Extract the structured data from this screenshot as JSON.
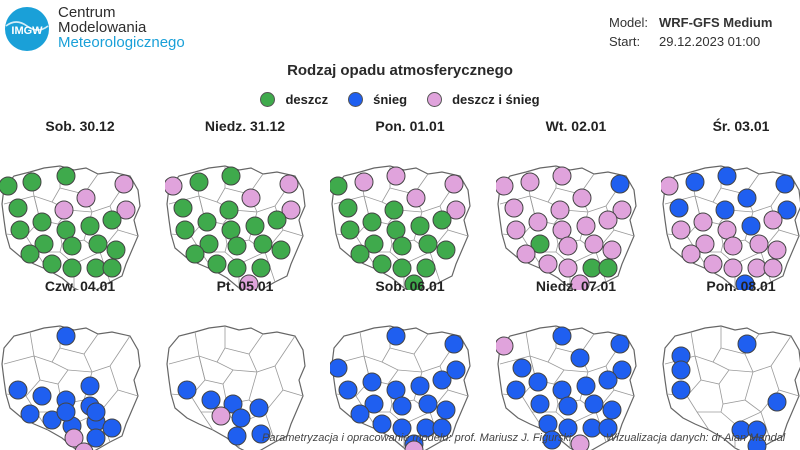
{
  "header": {
    "logo_text": "IMGW",
    "org_line1": "Centrum",
    "org_line2": "Modelowania",
    "org_line3": "Meteorologicznego",
    "model_label": "Model:",
    "model_value": "WRF-GFS Medium",
    "start_label": "Start:",
    "start_value": "29.12.2023 01:00"
  },
  "title": "Rodzaj opadu atmosferycznego",
  "legend": [
    {
      "label": "deszcz",
      "color": "#3faa4c"
    },
    {
      "label": "śnieg",
      "color": "#1f5ff0"
    },
    {
      "label": "deszcz i śnieg",
      "color": "#e0a3dc"
    }
  ],
  "colors": {
    "r": "#3faa4c",
    "s": "#1f5ff0",
    "m": "#e0a3dc",
    "outline": "#666666"
  },
  "maps": [
    {
      "date": "Sob. 30.12",
      "points": [
        [
          "r",
          8,
          46
        ],
        [
          "r",
          32,
          42
        ],
        [
          "r",
          66,
          36
        ],
        [
          "m",
          86,
          58
        ],
        [
          "m",
          124,
          44
        ],
        [
          "r",
          18,
          68
        ],
        [
          "m",
          64,
          70
        ],
        [
          "m",
          126,
          70
        ],
        [
          "r",
          20,
          90
        ],
        [
          "r",
          42,
          82
        ],
        [
          "r",
          66,
          90
        ],
        [
          "r",
          90,
          86
        ],
        [
          "r",
          112,
          80
        ],
        [
          "r",
          44,
          104
        ],
        [
          "r",
          72,
          106
        ],
        [
          "r",
          98,
          104
        ],
        [
          "r",
          116,
          110
        ],
        [
          "r",
          30,
          114
        ],
        [
          "r",
          52,
          124
        ],
        [
          "r",
          72,
          128
        ],
        [
          "r",
          96,
          128
        ],
        [
          "r",
          112,
          128
        ]
      ]
    },
    {
      "date": "Niedz. 31.12",
      "points": [
        [
          "m",
          8,
          46
        ],
        [
          "r",
          34,
          42
        ],
        [
          "r",
          66,
          36
        ],
        [
          "m",
          86,
          58
        ],
        [
          "m",
          124,
          44
        ],
        [
          "r",
          18,
          68
        ],
        [
          "r",
          64,
          70
        ],
        [
          "m",
          126,
          70
        ],
        [
          "r",
          20,
          90
        ],
        [
          "r",
          42,
          82
        ],
        [
          "r",
          66,
          90
        ],
        [
          "r",
          90,
          86
        ],
        [
          "r",
          112,
          80
        ],
        [
          "r",
          44,
          104
        ],
        [
          "r",
          72,
          106
        ],
        [
          "r",
          98,
          104
        ],
        [
          "r",
          116,
          110
        ],
        [
          "r",
          30,
          114
        ],
        [
          "r",
          52,
          124
        ],
        [
          "r",
          72,
          128
        ],
        [
          "r",
          96,
          128
        ],
        [
          "m",
          84,
          144
        ]
      ]
    },
    {
      "date": "Pon. 01.01",
      "points": [
        [
          "r",
          8,
          46
        ],
        [
          "m",
          34,
          42
        ],
        [
          "m",
          66,
          36
        ],
        [
          "m",
          86,
          58
        ],
        [
          "m",
          124,
          44
        ],
        [
          "r",
          18,
          68
        ],
        [
          "r",
          64,
          70
        ],
        [
          "m",
          126,
          70
        ],
        [
          "r",
          20,
          90
        ],
        [
          "r",
          42,
          82
        ],
        [
          "r",
          66,
          90
        ],
        [
          "r",
          90,
          86
        ],
        [
          "r",
          112,
          80
        ],
        [
          "r",
          44,
          104
        ],
        [
          "r",
          72,
          106
        ],
        [
          "r",
          98,
          104
        ],
        [
          "r",
          116,
          110
        ],
        [
          "r",
          30,
          114
        ],
        [
          "r",
          52,
          124
        ],
        [
          "r",
          72,
          128
        ],
        [
          "r",
          96,
          128
        ],
        [
          "r",
          84,
          144
        ]
      ]
    },
    {
      "date": "Wt. 02.01",
      "points": [
        [
          "m",
          8,
          46
        ],
        [
          "m",
          34,
          42
        ],
        [
          "m",
          66,
          36
        ],
        [
          "m",
          86,
          58
        ],
        [
          "s",
          124,
          44
        ],
        [
          "m",
          18,
          68
        ],
        [
          "m",
          64,
          70
        ],
        [
          "m",
          126,
          70
        ],
        [
          "m",
          20,
          90
        ],
        [
          "m",
          42,
          82
        ],
        [
          "m",
          66,
          90
        ],
        [
          "m",
          90,
          86
        ],
        [
          "m",
          112,
          80
        ],
        [
          "r",
          44,
          104
        ],
        [
          "m",
          72,
          106
        ],
        [
          "m",
          98,
          104
        ],
        [
          "m",
          116,
          110
        ],
        [
          "m",
          30,
          114
        ],
        [
          "m",
          52,
          124
        ],
        [
          "m",
          72,
          128
        ],
        [
          "r",
          96,
          128
        ],
        [
          "r",
          112,
          128
        ],
        [
          "m",
          84,
          144
        ]
      ]
    },
    {
      "date": "Śr. 03.01",
      "points": [
        [
          "m",
          8,
          46
        ],
        [
          "s",
          34,
          42
        ],
        [
          "s",
          66,
          36
        ],
        [
          "s",
          86,
          58
        ],
        [
          "s",
          124,
          44
        ],
        [
          "s",
          18,
          68
        ],
        [
          "s",
          64,
          70
        ],
        [
          "s",
          126,
          70
        ],
        [
          "m",
          20,
          90
        ],
        [
          "m",
          42,
          82
        ],
        [
          "m",
          66,
          90
        ],
        [
          "s",
          90,
          86
        ],
        [
          "m",
          112,
          80
        ],
        [
          "m",
          44,
          104
        ],
        [
          "m",
          72,
          106
        ],
        [
          "m",
          98,
          104
        ],
        [
          "m",
          116,
          110
        ],
        [
          "m",
          30,
          114
        ],
        [
          "m",
          52,
          124
        ],
        [
          "m",
          72,
          128
        ],
        [
          "m",
          96,
          128
        ],
        [
          "m",
          112,
          128
        ],
        [
          "s",
          84,
          144
        ]
      ]
    },
    {
      "date": "Czw. 04.01",
      "points": [
        [
          "s",
          66,
          36
        ],
        [
          "s",
          18,
          90
        ],
        [
          "s",
          42,
          96
        ],
        [
          "s",
          66,
          100
        ],
        [
          "s",
          90,
          86
        ],
        [
          "s",
          30,
          114
        ],
        [
          "s",
          52,
          120
        ],
        [
          "s",
          72,
          126
        ],
        [
          "s",
          96,
          122
        ],
        [
          "s",
          112,
          128
        ],
        [
          "s",
          66,
          112
        ],
        [
          "s",
          90,
          106
        ],
        [
          "s",
          96,
          112
        ],
        [
          "m",
          74,
          138
        ],
        [
          "s",
          96,
          138
        ],
        [
          "m",
          84,
          152
        ]
      ]
    },
    {
      "date": "Pt. 05.01",
      "points": [
        [
          "s",
          22,
          90
        ],
        [
          "s",
          46,
          100
        ],
        [
          "s",
          68,
          104
        ],
        [
          "s",
          94,
          108
        ],
        [
          "m",
          56,
          116
        ],
        [
          "s",
          76,
          118
        ],
        [
          "s",
          72,
          136
        ],
        [
          "s",
          96,
          134
        ]
      ]
    },
    {
      "date": "Sob. 06.01",
      "points": [
        [
          "s",
          66,
          36
        ],
        [
          "s",
          124,
          44
        ],
        [
          "s",
          8,
          68
        ],
        [
          "s",
          18,
          90
        ],
        [
          "s",
          42,
          82
        ],
        [
          "s",
          66,
          90
        ],
        [
          "s",
          90,
          86
        ],
        [
          "s",
          112,
          80
        ],
        [
          "s",
          44,
          104
        ],
        [
          "s",
          72,
          106
        ],
        [
          "s",
          98,
          104
        ],
        [
          "s",
          116,
          110
        ],
        [
          "s",
          30,
          114
        ],
        [
          "s",
          52,
          124
        ],
        [
          "s",
          72,
          128
        ],
        [
          "s",
          96,
          128
        ],
        [
          "s",
          112,
          128
        ],
        [
          "s",
          84,
          144
        ],
        [
          "s",
          126,
          70
        ],
        [
          "m",
          84,
          150
        ]
      ]
    },
    {
      "date": "Niedz. 07.01",
      "points": [
        [
          "m",
          8,
          46
        ],
        [
          "s",
          66,
          36
        ],
        [
          "s",
          124,
          44
        ],
        [
          "s",
          26,
          68
        ],
        [
          "s",
          84,
          58
        ],
        [
          "s",
          126,
          70
        ],
        [
          "s",
          20,
          90
        ],
        [
          "s",
          42,
          82
        ],
        [
          "s",
          66,
          90
        ],
        [
          "s",
          90,
          86
        ],
        [
          "s",
          112,
          80
        ],
        [
          "s",
          44,
          104
        ],
        [
          "s",
          72,
          106
        ],
        [
          "s",
          98,
          104
        ],
        [
          "s",
          116,
          110
        ],
        [
          "s",
          52,
          124
        ],
        [
          "s",
          72,
          128
        ],
        [
          "s",
          96,
          128
        ],
        [
          "s",
          112,
          128
        ],
        [
          "m",
          84,
          144
        ],
        [
          "s",
          56,
          140
        ]
      ]
    },
    {
      "date": "Pon. 08.01",
      "points": [
        [
          "s",
          20,
          56
        ],
        [
          "s",
          86,
          44
        ],
        [
          "s",
          20,
          70
        ],
        [
          "s",
          20,
          90
        ],
        [
          "s",
          116,
          102
        ],
        [
          "s",
          80,
          130
        ],
        [
          "s",
          96,
          130
        ],
        [
          "s",
          96,
          146
        ]
      ]
    }
  ],
  "credits": {
    "left": "Parametryzacja i opracowanie modelu: prof. Mariusz J. Figurski",
    "right": "Wizualizacja danych: dr Alan Mandal"
  }
}
